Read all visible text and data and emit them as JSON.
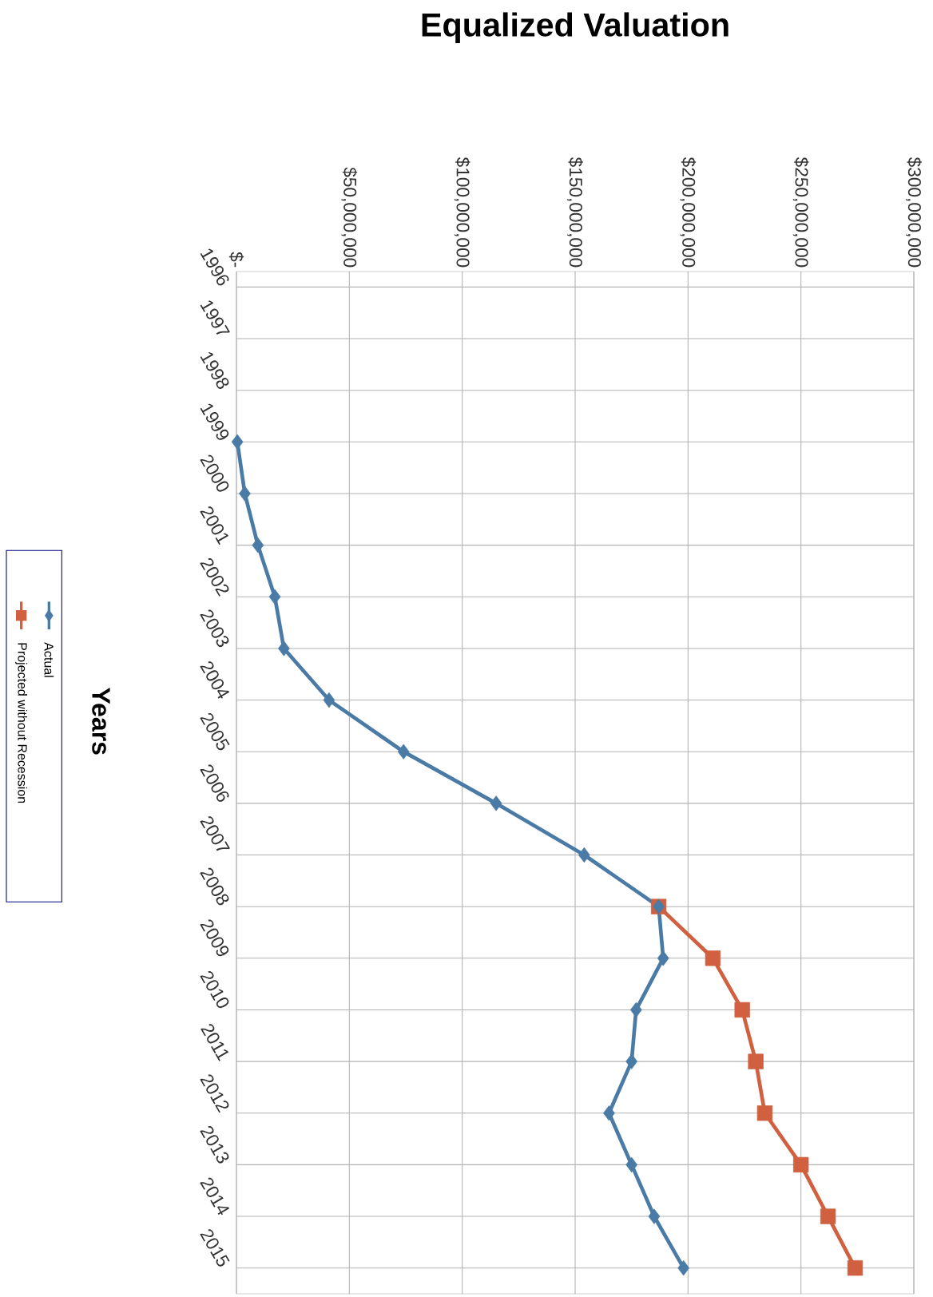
{
  "chart_data": {
    "type": "line",
    "title": "Equalized Valuation",
    "ylabel": "Years",
    "orientation": "horizontal",
    "categories": [
      "1996",
      "1997",
      "1998",
      "1999",
      "2000",
      "2001",
      "2002",
      "2003",
      "2004",
      "2005",
      "2006",
      "2007",
      "2008",
      "2009",
      "2010",
      "2011",
      "2012",
      "2013",
      "2014",
      "2015"
    ],
    "series": [
      {
        "name": "Actual",
        "color": "#4a7ba6",
        "marker": "diamond",
        "values": [
          null,
          null,
          null,
          400000,
          3700000,
          9500000,
          17000000,
          21000000,
          41000000,
          74000000,
          115000000,
          154000000,
          187000000,
          189000000,
          177000000,
          175000000,
          165000000,
          175000000,
          185000000,
          198000000
        ]
      },
      {
        "name": "Projected without Recession",
        "color": "#d0603f",
        "marker": "square",
        "values": [
          null,
          null,
          null,
          null,
          null,
          null,
          null,
          null,
          null,
          null,
          null,
          null,
          187000000,
          211000000,
          224000000,
          230000000,
          234000000,
          250000000,
          262000000,
          274000000
        ]
      }
    ],
    "xlim": [
      0,
      300000000
    ],
    "xticks": [
      {
        "value": 0,
        "label": "$-"
      },
      {
        "value": 50000000,
        "label": "$50,000,000"
      },
      {
        "value": 100000000,
        "label": "$100,000,000"
      },
      {
        "value": 150000000,
        "label": "$150,000,000"
      },
      {
        "value": 200000000,
        "label": "$200,000,000"
      },
      {
        "value": 250000000,
        "label": "$250,000,000"
      },
      {
        "value": 300000000,
        "label": "$300,000,000"
      }
    ],
    "grid": true,
    "legend": "left"
  }
}
